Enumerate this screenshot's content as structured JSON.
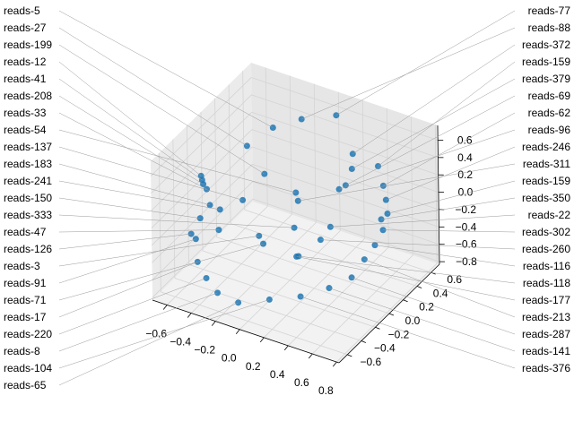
{
  "chart_data": {
    "type": "scatter",
    "projection": "3d",
    "title": "",
    "xlabel": "",
    "ylabel": "",
    "zlabel": "",
    "xlim": [
      -0.72,
      0.82
    ],
    "ylim": [
      -0.72,
      0.72
    ],
    "zlim": [
      -0.83,
      0.77
    ],
    "xticks": [
      "−0.6",
      "−0.4",
      "−0.2",
      "0.0",
      "0.2",
      "0.4",
      "0.6",
      "0.8"
    ],
    "xtick_values": [
      -0.6,
      -0.4,
      -0.2,
      0.0,
      0.2,
      0.4,
      0.6,
      0.8
    ],
    "yticks": [
      "−0.6",
      "−0.4",
      "−0.2",
      "0.0",
      "0.2",
      "0.4",
      "0.6"
    ],
    "ytick_values": [
      -0.6,
      -0.4,
      -0.2,
      0.0,
      0.2,
      0.4,
      0.6
    ],
    "zticks": [
      "−0.8",
      "−0.6",
      "−0.4",
      "−0.2",
      "0.0",
      "0.2",
      "0.4",
      "0.6"
    ],
    "ztick_values": [
      -0.8,
      -0.6,
      -0.4,
      -0.2,
      0.0,
      0.2,
      0.4,
      0.6
    ],
    "grid": true,
    "marker_color": "#1f77b4",
    "points": [
      {
        "x": 0.05,
        "y": 0.6,
        "z": 0.62,
        "label": "reads-77"
      },
      {
        "x": 0.3,
        "y": 0.4,
        "z": 0.45,
        "label": "reads-372"
      },
      {
        "x": 0.35,
        "y": 0.3,
        "z": 0.38,
        "label": "reads-379"
      },
      {
        "x": -0.55,
        "y": -0.3,
        "z": 0.35,
        "label": "reads-12"
      },
      {
        "x": -0.6,
        "y": -0.2,
        "z": 0.2,
        "label": "reads-41"
      },
      {
        "x": -0.65,
        "y": -0.1,
        "z": 0.05,
        "label": "reads-208"
      },
      {
        "x": -0.68,
        "y": 0.0,
        "z": -0.1,
        "label": "reads-33"
      },
      {
        "x": -0.62,
        "y": -0.2,
        "z": -0.25,
        "label": "reads-150"
      },
      {
        "x": -0.6,
        "y": -0.3,
        "z": -0.4,
        "label": "reads-91"
      },
      {
        "x": -0.5,
        "y": -0.45,
        "z": -0.5,
        "label": "reads-17"
      },
      {
        "x": -0.4,
        "y": -0.5,
        "z": -0.6,
        "label": "reads-220"
      },
      {
        "x": -0.25,
        "y": -0.6,
        "z": -0.62,
        "label": "reads-8"
      },
      {
        "x": -0.05,
        "y": -0.65,
        "z": -0.6,
        "label": "reads-65"
      },
      {
        "x": 0.15,
        "y": -0.55,
        "z": -0.55,
        "label": "reads-104"
      },
      {
        "x": 0.35,
        "y": -0.45,
        "z": -0.5,
        "label": "reads-376"
      },
      {
        "x": 0.5,
        "y": -0.3,
        "z": -0.45,
        "label": "reads-141"
      },
      {
        "x": 0.6,
        "y": -0.15,
        "z": -0.4,
        "label": "reads-287"
      },
      {
        "x": 0.62,
        "y": 0.0,
        "z": -0.3,
        "label": "reads-213"
      },
      {
        "x": 0.65,
        "y": 0.1,
        "z": -0.2,
        "label": "reads-116"
      },
      {
        "x": 0.66,
        "y": 0.2,
        "z": -0.1,
        "label": "reads-302"
      },
      {
        "x": 0.64,
        "y": 0.3,
        "z": 0.0,
        "label": "reads-159"
      },
      {
        "x": 0.6,
        "y": 0.35,
        "z": 0.1,
        "label": "reads-246"
      },
      {
        "x": 0.55,
        "y": 0.4,
        "z": 0.2,
        "label": "reads-62"
      },
      {
        "x": 0.45,
        "y": 0.5,
        "z": 0.3,
        "label": "reads-159"
      },
      {
        "x": -0.3,
        "y": 0.3,
        "z": 0.55,
        "label": "reads-5"
      },
      {
        "x": -0.15,
        "y": 0.45,
        "z": 0.6,
        "label": "reads-88"
      },
      {
        "x": -0.4,
        "y": 0.1,
        "z": 0.45,
        "label": "reads-27"
      },
      {
        "x": -0.2,
        "y": 0.0,
        "z": 0.3,
        "label": "reads-199"
      },
      {
        "x": 0.0,
        "y": 0.1,
        "z": 0.1,
        "label": "reads-54"
      },
      {
        "x": 0.1,
        "y": -0.1,
        "z": -0.1,
        "label": "reads-333"
      },
      {
        "x": -0.1,
        "y": -0.2,
        "z": -0.3,
        "label": "reads-71"
      },
      {
        "x": 0.2,
        "y": 0.1,
        "z": -0.35,
        "label": "reads-260"
      },
      {
        "x": 0.25,
        "y": -0.3,
        "z": -0.2,
        "label": "reads-118"
      },
      {
        "x": -0.35,
        "y": -0.4,
        "z": -0.1,
        "label": "reads-47"
      },
      {
        "x": -0.45,
        "y": -0.35,
        "z": 0.1,
        "label": "reads-183"
      },
      {
        "x": 0.3,
        "y": 0.2,
        "z": 0.2,
        "label": "reads-96"
      },
      {
        "x": -0.1,
        "y": 0.3,
        "z": -0.2,
        "label": "reads-311"
      },
      {
        "x": 0.4,
        "y": -0.1,
        "z": 0.05,
        "label": "reads-22"
      },
      {
        "x": -0.5,
        "y": 0.2,
        "z": -0.3,
        "label": "reads-137"
      },
      {
        "x": 0.15,
        "y": 0.55,
        "z": -0.1,
        "label": "reads-69"
      },
      {
        "x": -0.25,
        "y": -0.55,
        "z": 0.3,
        "label": "reads-241"
      },
      {
        "x": 0.1,
        "y": -0.6,
        "z": 0.2,
        "label": "reads-3"
      },
      {
        "x": 0.35,
        "y": -0.5,
        "z": 0.0,
        "label": "reads-177"
      },
      {
        "x": -0.55,
        "y": -0.45,
        "z": -0.2,
        "label": "reads-126"
      },
      {
        "x": 0.5,
        "y": 0.45,
        "z": -0.25,
        "label": "reads-350"
      }
    ]
  }
}
